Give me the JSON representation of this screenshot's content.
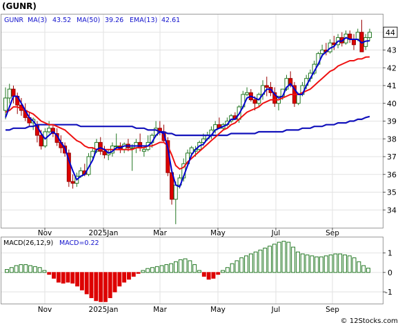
{
  "title": "(GUNR)",
  "watermark": "© 12Stocks.com",
  "legend": {
    "ticker": "GUNR",
    "ma3_label": "MA(3)",
    "ma3_value": "43.52",
    "ma50_label": "MA(50)",
    "ma50_value": "39.26",
    "ema13_label": "EMA(13)",
    "ema13_value": "42.61"
  },
  "last_price_tag": "44",
  "macd_legend": {
    "params_label": "MACD(26,12,9)",
    "value_label": "MACD=0.22"
  },
  "colors": {
    "ma3": "#0000cc",
    "ma50": "#1111bb",
    "ema13": "#ee1111",
    "up_fill": "#ffffff",
    "up_stroke": "#227722",
    "down_fill": "#dd0000",
    "down_stroke": "#990000",
    "macd_pos": "#227722",
    "macd_neg": "#dd0000",
    "legend_text": "#1111cc"
  },
  "chart_data": [
    {
      "type": "candlestick",
      "series_names": [
        "MA(3)",
        "MA(50)",
        "EMA(13)"
      ],
      "x_tick_labels": [
        "Nov",
        "2025Jan",
        "Mar",
        "May",
        "Jul",
        "Sep"
      ],
      "y_tick_labels": [
        "34",
        "35",
        "36",
        "37",
        "38",
        "39",
        "40",
        "41",
        "42",
        "43",
        "44"
      ],
      "ylim": [
        33.0,
        45.0
      ],
      "grid": true,
      "candles": [
        [
          39.6,
          40.9,
          39.1,
          40.3
        ],
        [
          40.3,
          41.1,
          40.0,
          40.8
        ],
        [
          40.8,
          41.0,
          40.0,
          40.4
        ],
        [
          40.4,
          40.6,
          39.4,
          39.9
        ],
        [
          39.9,
          40.3,
          39.3,
          39.6
        ],
        [
          39.6,
          40.0,
          39.0,
          39.2
        ],
        [
          39.2,
          39.5,
          38.7,
          38.9
        ],
        [
          38.9,
          39.2,
          38.5,
          39.1
        ],
        [
          38.8,
          39.0,
          37.8,
          38.2
        ],
        [
          38.2,
          38.5,
          37.4,
          37.6
        ],
        [
          37.6,
          38.6,
          37.5,
          38.4
        ],
        [
          38.4,
          39.0,
          38.3,
          38.6
        ],
        [
          38.6,
          38.8,
          38.1,
          38.3
        ],
        [
          38.3,
          38.6,
          37.6,
          37.8
        ],
        [
          37.8,
          38.2,
          37.2,
          37.5
        ],
        [
          37.6,
          37.8,
          37.0,
          37.2
        ],
        [
          37.2,
          37.4,
          35.3,
          35.6
        ],
        [
          35.6,
          36.0,
          35.2,
          35.5
        ],
        [
          35.5,
          36.1,
          35.3,
          35.9
        ],
        [
          35.9,
          36.4,
          35.8,
          36.2
        ],
        [
          36.2,
          36.6,
          35.9,
          36.0
        ],
        [
          36.0,
          37.2,
          35.9,
          37.0
        ],
        [
          37.0,
          37.5,
          36.9,
          37.3
        ],
        [
          37.3,
          38.0,
          37.2,
          37.8
        ],
        [
          37.8,
          38.1,
          37.1,
          37.3
        ],
        [
          37.3,
          37.6,
          36.9,
          37.1
        ],
        [
          37.1,
          37.4,
          36.8,
          37.2
        ],
        [
          37.2,
          37.8,
          37.0,
          37.6
        ],
        [
          37.6,
          38.3,
          37.4,
          37.6
        ],
        [
          37.6,
          37.8,
          37.2,
          37.4
        ],
        [
          37.4,
          37.8,
          37.2,
          37.7
        ],
        [
          37.7,
          38.0,
          37.3,
          37.5
        ],
        [
          37.5,
          37.7,
          36.2,
          37.5
        ],
        [
          37.5,
          38.0,
          37.2,
          37.8
        ],
        [
          37.8,
          38.3,
          37.3,
          37.5
        ],
        [
          37.3,
          37.6,
          37.0,
          37.4
        ],
        [
          37.4,
          38.2,
          37.3,
          37.8
        ],
        [
          37.8,
          38.3,
          37.5,
          38.2
        ],
        [
          38.2,
          39.0,
          38.1,
          38.6
        ],
        [
          38.6,
          39.0,
          38.2,
          38.4
        ],
        [
          38.4,
          38.8,
          37.8,
          37.9
        ],
        [
          37.9,
          38.1,
          35.9,
          36.1
        ],
        [
          36.1,
          36.3,
          34.3,
          34.6
        ],
        [
          34.6,
          35.6,
          33.2,
          35.4
        ],
        [
          35.4,
          36.0,
          35.2,
          35.8
        ],
        [
          35.8,
          36.9,
          35.6,
          36.6
        ],
        [
          36.6,
          37.4,
          36.5,
          37.2
        ],
        [
          37.2,
          37.6,
          37.0,
          37.5
        ],
        [
          37.3,
          37.6,
          37.0,
          37.4
        ],
        [
          37.4,
          37.9,
          37.3,
          37.8
        ],
        [
          37.8,
          38.3,
          37.6,
          38.0
        ],
        [
          38.0,
          38.4,
          37.9,
          38.2
        ],
        [
          38.2,
          38.7,
          38.0,
          38.5
        ],
        [
          38.5,
          39.0,
          38.3,
          38.8
        ],
        [
          38.8,
          39.2,
          38.7,
          38.6
        ],
        [
          38.6,
          38.9,
          38.5,
          38.8
        ],
        [
          38.8,
          39.2,
          38.7,
          39.0
        ],
        [
          39.0,
          39.4,
          38.9,
          39.3
        ],
        [
          39.3,
          39.5,
          39.2,
          39.1
        ],
        [
          39.1,
          39.9,
          38.9,
          39.8
        ],
        [
          39.8,
          40.7,
          39.7,
          40.5
        ],
        [
          40.5,
          40.9,
          40.4,
          40.6
        ],
        [
          40.6,
          40.8,
          40.1,
          40.2
        ],
        [
          40.2,
          40.4,
          39.6,
          40.0
        ],
        [
          40.0,
          40.6,
          39.8,
          40.5
        ],
        [
          40.5,
          41.3,
          40.2,
          41.0
        ],
        [
          41.0,
          41.5,
          40.4,
          40.9
        ],
        [
          40.9,
          41.2,
          40.4,
          40.6
        ],
        [
          40.6,
          40.9,
          39.8,
          40.0
        ],
        [
          40.0,
          40.3,
          39.6,
          40.4
        ],
        [
          40.4,
          40.7,
          40.2,
          40.8
        ],
        [
          40.8,
          41.6,
          40.7,
          41.4
        ],
        [
          41.4,
          41.8,
          40.9,
          41.0
        ],
        [
          41.0,
          41.2,
          39.8,
          40.0
        ],
        [
          40.0,
          40.6,
          39.9,
          40.5
        ],
        [
          40.5,
          41.2,
          40.4,
          41.0
        ],
        [
          41.0,
          41.6,
          40.8,
          41.4
        ],
        [
          41.4,
          41.9,
          41.2,
          41.7
        ],
        [
          41.7,
          42.4,
          41.6,
          42.2
        ],
        [
          42.2,
          42.9,
          42.1,
          42.8
        ],
        [
          42.8,
          43.3,
          42.6,
          43.0
        ],
        [
          43.0,
          43.4,
          42.7,
          42.9
        ],
        [
          42.9,
          43.6,
          42.8,
          43.4
        ],
        [
          43.4,
          43.8,
          43.0,
          43.3
        ],
        [
          43.3,
          43.9,
          43.1,
          43.7
        ],
        [
          43.7,
          44.0,
          43.2,
          43.4
        ],
        [
          43.4,
          44.1,
          43.3,
          43.9
        ],
        [
          43.9,
          44.1,
          43.4,
          43.6
        ],
        [
          43.6,
          43.9,
          43.0,
          43.3
        ],
        [
          43.6,
          44.2,
          43.5,
          44.0
        ],
        [
          44.0,
          44.7,
          42.9,
          42.9
        ],
        [
          43.2,
          43.9,
          43.0,
          43.7
        ],
        [
          43.7,
          44.2,
          43.5,
          44.0
        ]
      ],
      "ma50": [
        38.5,
        38.5,
        38.6,
        38.6,
        38.6,
        38.6,
        38.7,
        38.7,
        38.8,
        38.8,
        38.8,
        38.8,
        38.8,
        38.8,
        38.8,
        38.8,
        38.8,
        38.8,
        38.8,
        38.7,
        38.7,
        38.7,
        38.7,
        38.7,
        38.7,
        38.7,
        38.7,
        38.7,
        38.7,
        38.7,
        38.7,
        38.7,
        38.7,
        38.6,
        38.6,
        38.6,
        38.5,
        38.5,
        38.5,
        38.4,
        38.4,
        38.3,
        38.3,
        38.2,
        38.2,
        38.2,
        38.2,
        38.2,
        38.2,
        38.2,
        38.2,
        38.2,
        38.2,
        38.2,
        38.2,
        38.2,
        38.2,
        38.3,
        38.3,
        38.3,
        38.3,
        38.3,
        38.3,
        38.3,
        38.4,
        38.4,
        38.4,
        38.4,
        38.4,
        38.4,
        38.4,
        38.5,
        38.5,
        38.5,
        38.5,
        38.6,
        38.6,
        38.6,
        38.7,
        38.7,
        38.7,
        38.8,
        38.8,
        38.8,
        38.9,
        38.9,
        38.9,
        39.0,
        39.0,
        39.1,
        39.1,
        39.2,
        39.26
      ],
      "ema13": [
        39.5,
        39.6,
        39.8,
        39.8,
        39.7,
        39.6,
        39.5,
        39.4,
        39.2,
        39.0,
        38.9,
        38.8,
        38.8,
        38.7,
        38.6,
        38.5,
        38.3,
        38.1,
        37.9,
        37.8,
        37.6,
        37.5,
        37.5,
        37.4,
        37.4,
        37.4,
        37.4,
        37.4,
        37.4,
        37.4,
        37.4,
        37.4,
        37.4,
        37.5,
        37.5,
        37.5,
        37.6,
        37.6,
        37.7,
        37.8,
        37.8,
        37.6,
        37.1,
        36.5,
        36.3,
        36.4,
        36.7,
        36.9,
        37.1,
        37.3,
        37.5,
        37.7,
        37.9,
        38.1,
        38.3,
        38.5,
        38.6,
        38.8,
        38.9,
        39.1,
        39.3,
        39.5,
        39.6,
        39.7,
        39.8,
        40.0,
        40.1,
        40.2,
        40.2,
        40.2,
        40.3,
        40.4,
        40.5,
        40.5,
        40.5,
        40.6,
        40.7,
        40.8,
        41.0,
        41.2,
        41.4,
        41.6,
        41.8,
        41.9,
        42.1,
        42.2,
        42.3,
        42.4,
        42.4,
        42.5,
        42.5,
        42.6,
        42.61
      ],
      "ma3": [
        39.2,
        39.8,
        40.4,
        40.4,
        40.0,
        39.6,
        39.2,
        39.0,
        38.7,
        38.3,
        38.0,
        38.2,
        38.4,
        38.2,
        37.8,
        37.5,
        36.8,
        36.2,
        35.7,
        35.9,
        36.0,
        36.4,
        36.8,
        37.4,
        37.5,
        37.4,
        37.2,
        37.3,
        37.5,
        37.5,
        37.6,
        37.6,
        37.6,
        37.6,
        37.6,
        37.6,
        37.6,
        37.8,
        38.2,
        38.4,
        38.3,
        37.5,
        36.2,
        35.4,
        35.3,
        35.9,
        36.5,
        37.1,
        37.4,
        37.6,
        37.7,
        38.0,
        38.2,
        38.5,
        38.6,
        38.7,
        38.8,
        39.1,
        39.1,
        39.4,
        39.8,
        40.3,
        40.4,
        40.3,
        40.2,
        40.5,
        40.8,
        40.8,
        40.5,
        40.3,
        40.4,
        40.9,
        41.1,
        40.8,
        40.5,
        40.5,
        41.0,
        41.4,
        41.8,
        42.2,
        42.7,
        42.9,
        43.1,
        43.2,
        43.5,
        43.5,
        43.7,
        43.6,
        43.6,
        43.6,
        43.4,
        43.5,
        43.52
      ]
    },
    {
      "type": "bar",
      "title": "MACD(26,12,9)",
      "y_tick_labels": [
        "-1",
        "0",
        "1"
      ],
      "ylim": [
        -1.6,
        1.8
      ],
      "values": [
        0.15,
        0.25,
        0.35,
        0.4,
        0.4,
        0.35,
        0.3,
        0.25,
        0.1,
        -0.1,
        -0.3,
        -0.5,
        -0.55,
        -0.5,
        -0.55,
        -0.7,
        -0.9,
        -1.1,
        -1.3,
        -1.45,
        -1.5,
        -1.5,
        -1.3,
        -1.0,
        -0.7,
        -0.5,
        -0.35,
        -0.2,
        -0.05,
        0.1,
        0.2,
        0.25,
        0.3,
        0.35,
        0.4,
        0.45,
        0.55,
        0.65,
        0.7,
        0.6,
        0.4,
        0.1,
        -0.2,
        -0.35,
        -0.3,
        -0.1,
        0.1,
        0.25,
        0.45,
        0.6,
        0.75,
        0.85,
        0.95,
        1.05,
        1.15,
        1.25,
        1.35,
        1.45,
        1.55,
        1.6,
        1.55,
        1.3,
        1.05,
        0.95,
        0.9,
        0.85,
        0.8,
        0.8,
        0.85,
        0.9,
        0.95,
        0.95,
        0.9,
        0.85,
        0.75,
        0.55,
        0.35,
        0.22
      ]
    }
  ]
}
